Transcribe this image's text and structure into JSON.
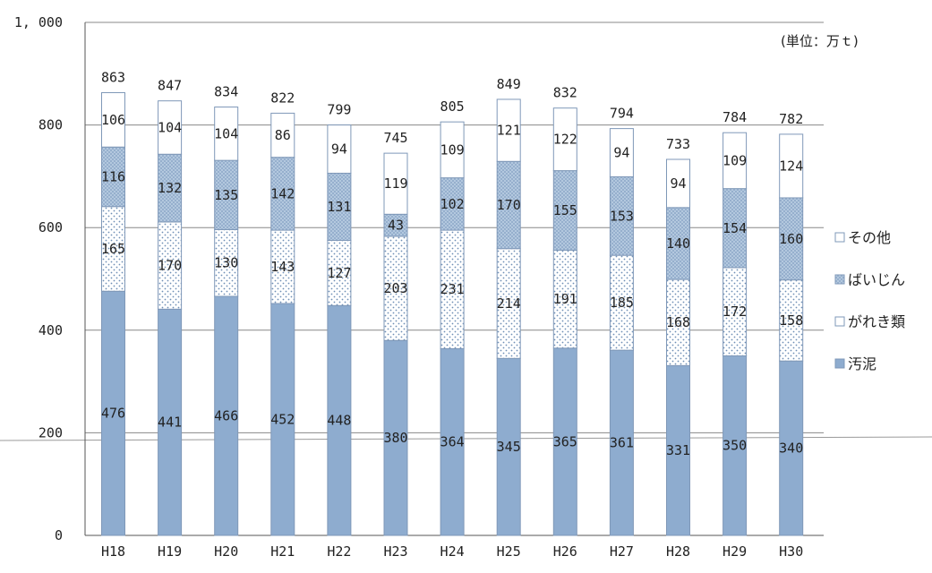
{
  "chart_data": {
    "type": "bar",
    "stacked": true,
    "unit_label": "(単位：万ｔ)",
    "categories": [
      "H18",
      "H19",
      "H20",
      "H21",
      "H22",
      "H23",
      "H24",
      "H25",
      "H26",
      "H27",
      "H28",
      "H29",
      "H30"
    ],
    "series": [
      {
        "name": "汚泥",
        "values": [
          476,
          441,
          466,
          452,
          448,
          380,
          364,
          345,
          365,
          361,
          331,
          350,
          340
        ]
      },
      {
        "name": "がれき類",
        "values": [
          165,
          170,
          130,
          143,
          127,
          203,
          231,
          214,
          191,
          185,
          168,
          172,
          158
        ]
      },
      {
        "name": "ばいじん",
        "values": [
          116,
          132,
          135,
          142,
          131,
          43,
          102,
          170,
          155,
          153,
          140,
          154,
          160
        ]
      },
      {
        "name": "その他",
        "values": [
          106,
          104,
          104,
          86,
          94,
          119,
          109,
          121,
          122,
          94,
          94,
          109,
          124
        ]
      }
    ],
    "totals": [
      863,
      847,
      834,
      822,
      799,
      745,
      805,
      849,
      832,
      794,
      733,
      784,
      782
    ],
    "yticks": [
      "0",
      "200",
      "400",
      "600",
      "800",
      "1, 000"
    ],
    "ylim": [
      0,
      1000
    ],
    "grid": true,
    "legend_position": "right",
    "colors": {
      "汚泥": "#8eaccf",
      "がれき類": "#ffffff",
      "ばいじん": "#b9cde2",
      "その他": "#ffffff",
      "outline": "#7f98b8",
      "grid": "#888888"
    }
  }
}
